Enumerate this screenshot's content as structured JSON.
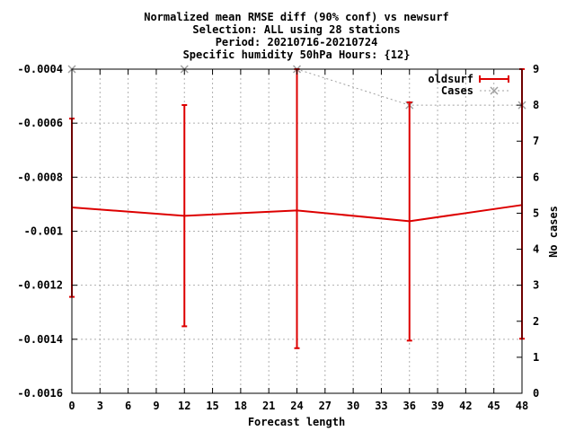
{
  "chart_data": {
    "type": "line",
    "title_lines": [
      "Normalized mean RMSE diff (90% conf) vs newsurf",
      "Selection: ALL using    28 stations",
      "Period: 20210716-20210724",
      "Specific humidity 50hPa   Hours: {12}"
    ],
    "xlabel": "Forecast length",
    "ylabel": "",
    "y2label": "No cases",
    "xlim": [
      0,
      48
    ],
    "ylim": [
      -0.0016,
      -0.0004
    ],
    "y2lim": [
      0,
      9
    ],
    "x_ticks": [
      0,
      3,
      6,
      9,
      12,
      15,
      18,
      21,
      24,
      27,
      30,
      33,
      36,
      39,
      42,
      45,
      48
    ],
    "y_ticks": [
      -0.0004,
      -0.0006,
      -0.0008,
      -0.001,
      -0.0012,
      -0.0014,
      -0.0016
    ],
    "y_tick_labels": [
      "-0.0004",
      "-0.0006",
      "-0.0008",
      "-0.001",
      "-0.0012",
      "-0.0014",
      "-0.0016"
    ],
    "y2_ticks": [
      0,
      1,
      2,
      3,
      4,
      5,
      6,
      7,
      8,
      9
    ],
    "grid": true,
    "legend_position": "top-right",
    "series": [
      {
        "name": "oldsurf",
        "axis": "y",
        "style": "errorbars-line",
        "color": "#dd0000",
        "x": [
          0,
          12,
          24,
          36,
          48
        ],
        "y": [
          -0.000912,
          -0.000943,
          -0.000923,
          -0.000963,
          -0.000903
        ],
        "y_low": [
          -0.001243,
          -0.001352,
          -0.001433,
          -0.001405,
          -0.001398
        ],
        "y_high": [
          -0.000583,
          -0.000533,
          -0.0004,
          -0.000523,
          -0.0004
        ]
      },
      {
        "name": "Cases",
        "axis": "y2",
        "style": "dashed-points",
        "color": "#a0a0a0",
        "x": [
          0,
          12,
          24,
          36,
          48
        ],
        "y": [
          9,
          9,
          9,
          8,
          8
        ]
      }
    ]
  }
}
